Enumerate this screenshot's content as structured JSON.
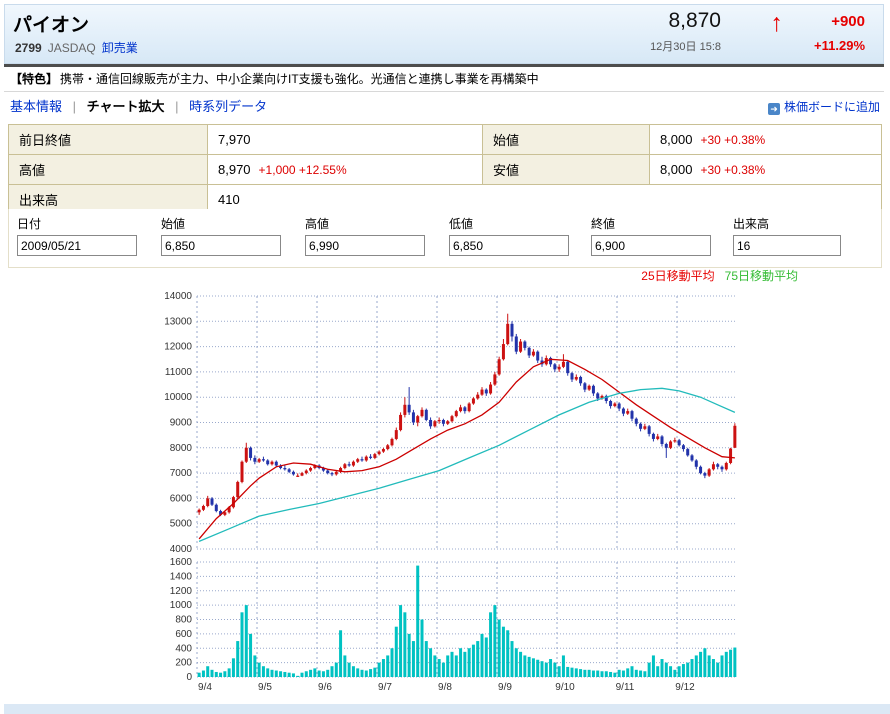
{
  "header": {
    "stock_name": "パイオン",
    "code": "2799",
    "market": "JASDAQ",
    "sector": "卸売業",
    "price": "8,870",
    "datetime": "12月30日 15:8",
    "arrow": "↑",
    "change": "+900",
    "change_pct": "+11.29%"
  },
  "feature": {
    "tag": "【特色】",
    "text": "携帯・通信回線販売が主力、中小企業向けIT支援も強化。光通信と連携し事業を再構築中"
  },
  "nav": {
    "basic": "基本情報",
    "chart": "チャート拡大",
    "timeseries": "時系列データ",
    "sep": "|",
    "add_board": "株価ボードに追加",
    "add_board_glyph": "➜"
  },
  "quote": {
    "prev_close": {
      "label": "前日終値",
      "value": "7,970",
      "change": ""
    },
    "open": {
      "label": "始値",
      "value": "8,000",
      "change": "+30 +0.38%"
    },
    "high": {
      "label": "高値",
      "value": "8,970",
      "change": "+1,000 +12.55%"
    },
    "low": {
      "label": "安値",
      "value": "8,000",
      "change": "+30 +0.38%"
    },
    "volume": {
      "label": "出来高",
      "value": "410",
      "change": ""
    }
  },
  "form": {
    "fields": [
      {
        "label": "日付",
        "value": "2009/05/21"
      },
      {
        "label": "始値",
        "value": "6,850"
      },
      {
        "label": "高値",
        "value": "6,990"
      },
      {
        "label": "低値",
        "value": "6,850"
      },
      {
        "label": "終値",
        "value": "6,900"
      },
      {
        "label": "出来高",
        "value": "16"
      }
    ]
  },
  "legend": {
    "ma25": "25日移動平均",
    "ma75": "75日移動平均"
  },
  "chart_data": {
    "type": "candlestick+volume",
    "x_axis": {
      "labels": [
        "9/4",
        "9/5",
        "9/6",
        "9/7",
        "9/8",
        "9/9",
        "9/10",
        "9/11",
        "9/12"
      ],
      "candles_per_month": 14
    },
    "price_axis": {
      "min": 4000,
      "max": 14000,
      "tick": 1000
    },
    "volume_axis": {
      "min": 0,
      "max": 1600,
      "tick": 200
    },
    "colors": {
      "up": "#cc1111",
      "down": "#2233aa",
      "ma25": "#cc0000",
      "ma75": "#22bbbb",
      "volume": "#00c2c2",
      "grid": "#9aa9cc",
      "axis_text": "#333333"
    },
    "candles": [
      [
        5450,
        5600,
        5350,
        5550,
        60
      ],
      [
        5550,
        5750,
        5500,
        5700,
        90
      ],
      [
        5700,
        6100,
        5650,
        6000,
        150
      ],
      [
        6000,
        6050,
        5700,
        5750,
        100
      ],
      [
        5750,
        5800,
        5450,
        5500,
        70
      ],
      [
        5500,
        5550,
        5300,
        5350,
        60
      ],
      [
        5350,
        5500,
        5300,
        5450,
        80
      ],
      [
        5450,
        5700,
        5400,
        5650,
        120
      ],
      [
        5650,
        6100,
        5600,
        6050,
        260
      ],
      [
        6050,
        6700,
        6000,
        6650,
        500
      ],
      [
        6650,
        7500,
        6600,
        7450,
        900
      ],
      [
        7450,
        8200,
        7400,
        8000,
        1000
      ],
      [
        8000,
        8050,
        7500,
        7600,
        600
      ],
      [
        7600,
        7700,
        7350,
        7450,
        300
      ],
      [
        7450,
        7600,
        7400,
        7550,
        200
      ],
      [
        7550,
        7650,
        7450,
        7500,
        150
      ],
      [
        7500,
        7550,
        7300,
        7350,
        120
      ],
      [
        7350,
        7500,
        7300,
        7450,
        100
      ],
      [
        7450,
        7500,
        7250,
        7300,
        90
      ],
      [
        7300,
        7350,
        7150,
        7200,
        80
      ],
      [
        7200,
        7300,
        7100,
        7150,
        70
      ],
      [
        7150,
        7200,
        7000,
        7050,
        60
      ],
      [
        7050,
        7100,
        6900,
        6950,
        50
      ],
      [
        6850,
        6990,
        6850,
        6900,
        16
      ],
      [
        6900,
        7050,
        6880,
        7000,
        60
      ],
      [
        7000,
        7150,
        6950,
        7100,
        80
      ],
      [
        7100,
        7250,
        7050,
        7200,
        100
      ],
      [
        7200,
        7350,
        7150,
        7300,
        120
      ],
      [
        7300,
        7350,
        7150,
        7200,
        90
      ],
      [
        7200,
        7250,
        7050,
        7100,
        80
      ],
      [
        7100,
        7150,
        6950,
        7000,
        100
      ],
      [
        7000,
        7050,
        6880,
        6950,
        150
      ],
      [
        6950,
        7100,
        6900,
        7050,
        200
      ],
      [
        7050,
        7250,
        7000,
        7200,
        650
      ],
      [
        7200,
        7400,
        7150,
        7350,
        300
      ],
      [
        7350,
        7450,
        7250,
        7300,
        200
      ],
      [
        7300,
        7500,
        7250,
        7450,
        150
      ],
      [
        7450,
        7600,
        7400,
        7550,
        120
      ],
      [
        7550,
        7650,
        7450,
        7500,
        100
      ],
      [
        7500,
        7700,
        7450,
        7650,
        90
      ],
      [
        7650,
        7750,
        7550,
        7600,
        110
      ],
      [
        7600,
        7800,
        7550,
        7750,
        130
      ],
      [
        7750,
        7900,
        7700,
        7850,
        200
      ],
      [
        7850,
        8000,
        7800,
        7950,
        250
      ],
      [
        7950,
        8150,
        7900,
        8100,
        300
      ],
      [
        8100,
        8400,
        8050,
        8350,
        400
      ],
      [
        8350,
        8800,
        8300,
        8700,
        700
      ],
      [
        8700,
        9400,
        8650,
        9300,
        1000
      ],
      [
        9300,
        10000,
        9200,
        9700,
        900
      ],
      [
        9700,
        10400,
        9300,
        9400,
        600
      ],
      [
        9400,
        9500,
        8900,
        9000,
        500
      ],
      [
        9000,
        9300,
        8850,
        9250,
        1550
      ],
      [
        9250,
        9600,
        9200,
        9500,
        800
      ],
      [
        9500,
        9550,
        9050,
        9100,
        500
      ],
      [
        9100,
        9200,
        8750,
        8850,
        400
      ],
      [
        8850,
        9100,
        8800,
        9050,
        300
      ],
      [
        9050,
        9200,
        8950,
        9100,
        250
      ],
      [
        9100,
        9150,
        8850,
        8950,
        200
      ],
      [
        8950,
        9100,
        8900,
        9050,
        300
      ],
      [
        9050,
        9300,
        9000,
        9250,
        350
      ],
      [
        9250,
        9500,
        9200,
        9450,
        300
      ],
      [
        9450,
        9700,
        9400,
        9600,
        400
      ],
      [
        9600,
        9650,
        9350,
        9450,
        350
      ],
      [
        9450,
        9800,
        9400,
        9750,
        400
      ],
      [
        9750,
        10000,
        9700,
        9950,
        450
      ],
      [
        9950,
        10200,
        9900,
        10100,
        500
      ],
      [
        10100,
        10400,
        10050,
        10300,
        600
      ],
      [
        10300,
        10350,
        10050,
        10150,
        550
      ],
      [
        10150,
        10600,
        10100,
        10500,
        900
      ],
      [
        10500,
        11000,
        10450,
        10900,
        1000
      ],
      [
        10900,
        11600,
        10850,
        11500,
        800
      ],
      [
        11500,
        12300,
        11450,
        12100,
        700
      ],
      [
        12100,
        13300,
        12050,
        12900,
        650
      ],
      [
        12900,
        13000,
        12200,
        12400,
        500
      ],
      [
        12400,
        12500,
        11700,
        11800,
        400
      ],
      [
        11800,
        12300,
        11750,
        12200,
        350
      ],
      [
        12200,
        12250,
        11850,
        11950,
        300
      ],
      [
        11950,
        12000,
        11550,
        11650,
        280
      ],
      [
        11650,
        11900,
        11600,
        11800,
        260
      ],
      [
        11800,
        11850,
        11350,
        11450,
        240
      ],
      [
        11450,
        11600,
        11200,
        11300,
        220
      ],
      [
        11300,
        11650,
        11250,
        11550,
        200
      ],
      [
        11550,
        11600,
        11200,
        11300,
        250
      ],
      [
        11300,
        11350,
        11000,
        11100,
        200
      ],
      [
        11100,
        11300,
        11000,
        11200,
        150
      ],
      [
        11200,
        11700,
        11150,
        11400,
        300
      ],
      [
        11400,
        11450,
        10850,
        10950,
        140
      ],
      [
        10950,
        11000,
        10600,
        10700,
        130
      ],
      [
        10700,
        10900,
        10650,
        10800,
        120
      ],
      [
        10800,
        10850,
        10450,
        10550,
        110
      ],
      [
        10550,
        10600,
        10200,
        10300,
        100
      ],
      [
        10300,
        10500,
        10250,
        10450,
        100
      ],
      [
        10450,
        10500,
        10050,
        10150,
        90
      ],
      [
        10150,
        10200,
        9850,
        9950,
        90
      ],
      [
        9950,
        10100,
        9900,
        10050,
        80
      ],
      [
        10050,
        10100,
        9750,
        9850,
        80
      ],
      [
        9850,
        9900,
        9550,
        9650,
        70
      ],
      [
        9650,
        9800,
        9600,
        9750,
        60
      ],
      [
        9750,
        9800,
        9450,
        9550,
        100
      ],
      [
        9550,
        9600,
        9250,
        9350,
        90
      ],
      [
        9350,
        9550,
        9300,
        9450,
        120
      ],
      [
        9450,
        9500,
        9050,
        9150,
        150
      ],
      [
        9150,
        9200,
        8850,
        8950,
        100
      ],
      [
        8950,
        9000,
        8650,
        8750,
        90
      ],
      [
        8750,
        8950,
        8700,
        8850,
        80
      ],
      [
        8850,
        8900,
        8450,
        8550,
        200
      ],
      [
        8550,
        8600,
        8250,
        8350,
        300
      ],
      [
        8350,
        8550,
        8300,
        8450,
        150
      ],
      [
        8450,
        8500,
        8050,
        8150,
        250
      ],
      [
        8150,
        8200,
        7600,
        8000,
        200
      ],
      [
        8000,
        8300,
        7950,
        8250,
        150
      ],
      [
        8250,
        8400,
        8200,
        8300,
        100
      ],
      [
        8300,
        8350,
        8050,
        8100,
        150
      ],
      [
        8100,
        8150,
        7850,
        7950,
        180
      ],
      [
        7950,
        8000,
        7650,
        7700,
        200
      ],
      [
        7700,
        7750,
        7450,
        7500,
        250
      ],
      [
        7500,
        7550,
        7150,
        7250,
        300
      ],
      [
        7250,
        7300,
        6950,
        7000,
        350
      ],
      [
        7000,
        7050,
        6800,
        6900,
        400
      ],
      [
        6900,
        7200,
        6850,
        7150,
        300
      ],
      [
        7150,
        7450,
        7100,
        7350,
        250
      ],
      [
        7350,
        7400,
        7150,
        7250,
        200
      ],
      [
        7250,
        7300,
        7050,
        7150,
        300
      ],
      [
        7150,
        7450,
        7100,
        7400,
        350
      ],
      [
        7400,
        8000,
        7350,
        7970,
        380
      ],
      [
        8000,
        8970,
        8000,
        8870,
        410
      ]
    ],
    "ma25_keypoints": [
      [
        0,
        4400
      ],
      [
        4,
        5200
      ],
      [
        8,
        5800
      ],
      [
        12,
        6500
      ],
      [
        14,
        6800
      ],
      [
        18,
        7250
      ],
      [
        22,
        7400
      ],
      [
        26,
        7350
      ],
      [
        30,
        7150
      ],
      [
        34,
        7050
      ],
      [
        38,
        7100
      ],
      [
        42,
        7250
      ],
      [
        46,
        7550
      ],
      [
        50,
        7950
      ],
      [
        54,
        8350
      ],
      [
        58,
        8700
      ],
      [
        62,
        8950
      ],
      [
        66,
        9300
      ],
      [
        70,
        9800
      ],
      [
        74,
        10600
      ],
      [
        78,
        11200
      ],
      [
        82,
        11500
      ],
      [
        86,
        11450
      ],
      [
        90,
        11100
      ],
      [
        94,
        10700
      ],
      [
        98,
        10200
      ],
      [
        102,
        9700
      ],
      [
        106,
        9250
      ],
      [
        110,
        8800
      ],
      [
        114,
        8400
      ],
      [
        118,
        8000
      ],
      [
        122,
        7650
      ],
      [
        125,
        7600
      ]
    ],
    "ma75_keypoints": [
      [
        0,
        4300
      ],
      [
        7,
        4800
      ],
      [
        14,
        5300
      ],
      [
        21,
        5560
      ],
      [
        28,
        5800
      ],
      [
        35,
        6100
      ],
      [
        42,
        6400
      ],
      [
        49,
        6750
      ],
      [
        56,
        7100
      ],
      [
        63,
        7600
      ],
      [
        70,
        8100
      ],
      [
        77,
        8700
      ],
      [
        84,
        9300
      ],
      [
        91,
        9800
      ],
      [
        98,
        10150
      ],
      [
        103,
        10300
      ],
      [
        108,
        10350
      ],
      [
        112,
        10250
      ],
      [
        117,
        10000
      ],
      [
        121,
        9700
      ],
      [
        125,
        9400
      ]
    ]
  }
}
